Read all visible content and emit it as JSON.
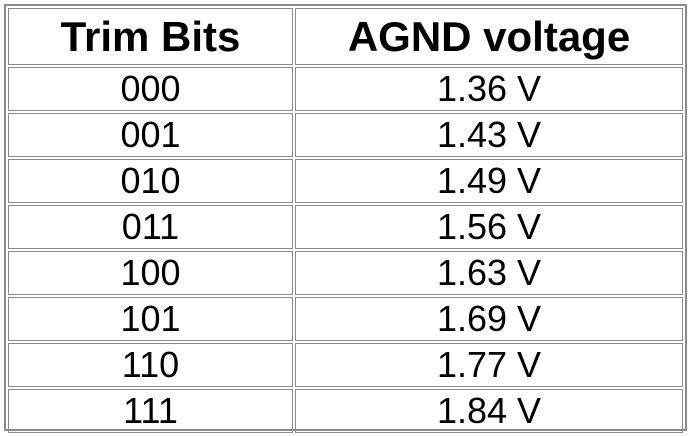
{
  "table": {
    "headers": [
      "Trim Bits",
      "AGND voltage"
    ],
    "rows": [
      [
        "000",
        "1.36 V"
      ],
      [
        "001",
        "1.43 V"
      ],
      [
        "010",
        "1.49 V"
      ],
      [
        "011",
        "1.56 V"
      ],
      [
        "100",
        "1.63 V"
      ],
      [
        "101",
        "1.69 V"
      ],
      [
        "110",
        "1.77 V"
      ],
      [
        "111",
        "1.84 V"
      ]
    ]
  }
}
